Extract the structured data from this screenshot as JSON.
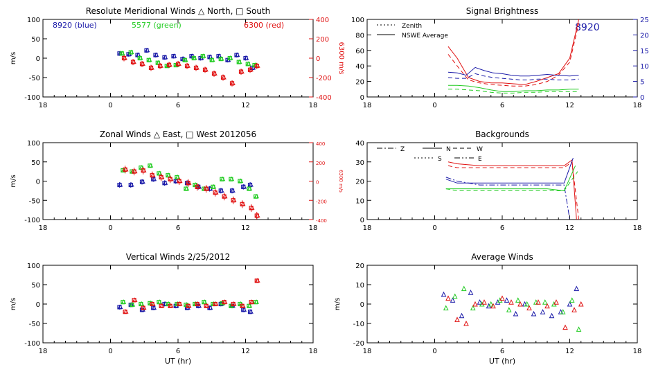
{
  "colors": {
    "blue": "#1a1aa8",
    "green": "#22cc22",
    "red": "#e01010",
    "axis": "#000000",
    "brightness_blue": "#1a1aa8"
  },
  "chart_data": [
    {
      "id": "meridional",
      "type": "scatter",
      "title": "Resolute Meridional Winds △ North, □ South",
      "xlabel": "",
      "ylabel": "m/s",
      "y2label": "6300 m/s",
      "xlim": [
        18,
        42
      ],
      "x_tick_values": [
        18,
        24,
        30,
        36,
        42
      ],
      "x_tick_labels": [
        "18",
        "0",
        "6",
        "12",
        "18"
      ],
      "ylim": [
        -100,
        100
      ],
      "y_ticks": [
        100,
        50,
        0,
        -50,
        -100
      ],
      "y2lim": [
        -400,
        400
      ],
      "y2_ticks": [
        400,
        200,
        0,
        -200,
        -400
      ],
      "legend": [
        {
          "label": "8920 (blue)",
          "color": "blue"
        },
        {
          "label": "5577 (green)",
          "color": "green"
        },
        {
          "label": "6300 (red)",
          "color": "red"
        }
      ],
      "series": [
        {
          "name": "8920 (blue)",
          "color": "blue",
          "axis": "left",
          "err": 6,
          "x": [
            24.8,
            25.6,
            26.4,
            27.2,
            28.0,
            28.8,
            29.6,
            30.4,
            31.2,
            32.0,
            32.8,
            33.6,
            34.4,
            35.2,
            36.0,
            36.6
          ],
          "y": [
            12,
            10,
            8,
            20,
            8,
            2,
            5,
            -2,
            5,
            0,
            3,
            5,
            -5,
            8,
            0,
            -25
          ]
        },
        {
          "name": "5577 (green)",
          "color": "green",
          "axis": "left",
          "err": 5,
          "x": [
            25.0,
            25.8,
            26.6,
            27.4,
            28.2,
            29.0,
            29.8,
            30.6,
            31.4,
            32.2,
            33.0,
            33.8,
            34.6,
            35.4,
            36.2,
            36.8
          ],
          "y": [
            12,
            15,
            0,
            -5,
            -12,
            -20,
            -18,
            -5,
            0,
            5,
            -5,
            -2,
            0,
            -10,
            -15,
            -18
          ]
        },
        {
          "name": "6300 (red)",
          "color": "red",
          "axis": "right",
          "err": 8,
          "x": [
            25.2,
            26.0,
            26.8,
            27.6,
            28.4,
            29.2,
            30.0,
            30.8,
            31.6,
            32.4,
            33.2,
            34.0,
            34.8,
            35.6,
            36.4,
            37.0
          ],
          "y": [
            0,
            -40,
            -60,
            -100,
            -80,
            -70,
            -60,
            -80,
            -100,
            -120,
            -160,
            -200,
            -260,
            -140,
            -120,
            -80
          ]
        }
      ]
    },
    {
      "id": "brightness",
      "type": "line",
      "title": "Signal Brightness",
      "xlabel": "",
      "ylabel": "",
      "xlim": [
        18,
        42
      ],
      "x_tick_values": [
        18,
        24,
        30,
        36,
        42
      ],
      "x_tick_labels": [
        "18",
        "0",
        "6",
        "12",
        "18"
      ],
      "ylim": [
        0,
        100
      ],
      "y_ticks": [
        100,
        80,
        60,
        40,
        20,
        0
      ],
      "y2lim": [
        0,
        25
      ],
      "y2_ticks": [
        25,
        20,
        15,
        10,
        5,
        0
      ],
      "annotation": "8920",
      "legend": [
        {
          "label": "Zenith",
          "dash": "2,3"
        },
        {
          "label": "NSWE Average",
          "dash": ""
        }
      ],
      "series": [
        {
          "name": "",
          "color": "red",
          "dash": "",
          "axis": "left",
          "x": [
            25.2,
            26.0,
            27.0,
            28.0,
            29.0,
            30.0,
            31.0,
            32.0,
            33.0,
            34.0,
            35.0,
            36.0,
            36.8
          ],
          "y": [
            65,
            50,
            25,
            20,
            18,
            18,
            17,
            16,
            20,
            25,
            30,
            50,
            100
          ]
        },
        {
          "name": "",
          "color": "red",
          "dash": "6,4",
          "axis": "left",
          "x": [
            25.2,
            26.0,
            27.0,
            28.0,
            29.0,
            30.0,
            31.0,
            32.0,
            33.0,
            34.0,
            35.0,
            36.0,
            36.8
          ],
          "y": [
            55,
            40,
            22,
            18,
            16,
            15,
            14,
            14,
            16,
            20,
            28,
            45,
            95
          ]
        },
        {
          "name": "",
          "color": "blue",
          "dash": "",
          "axis": "left",
          "x": [
            25.2,
            26.0,
            26.8,
            27.6,
            28.4,
            29.2,
            30.0,
            30.8,
            31.6,
            32.4,
            33.2,
            34.0,
            34.8,
            36.0,
            36.8
          ],
          "y": [
            32,
            31,
            28,
            38,
            34,
            31,
            30,
            28,
            27,
            27,
            28,
            29,
            28,
            27,
            28
          ]
        },
        {
          "name": "",
          "color": "blue",
          "dash": "6,4",
          "axis": "left",
          "x": [
            25.2,
            26.0,
            26.8,
            27.6,
            28.4,
            29.2,
            30.0,
            30.8,
            31.6,
            32.4,
            33.2,
            34.0,
            34.8,
            36.0,
            36.8
          ],
          "y": [
            25,
            24,
            24,
            30,
            27,
            25,
            24,
            23,
            22,
            22,
            23,
            23,
            22,
            22,
            23
          ]
        },
        {
          "name": "",
          "color": "green",
          "dash": "",
          "axis": "left",
          "x": [
            25.2,
            26.0,
            27.0,
            28.0,
            29.0,
            30.0,
            31.0,
            32.0,
            33.0,
            34.0,
            35.0,
            36.0,
            36.8
          ],
          "y": [
            15,
            15,
            14,
            12,
            9,
            7,
            7,
            8,
            8,
            9,
            9,
            10,
            10
          ]
        },
        {
          "name": "",
          "color": "green",
          "dash": "6,4",
          "axis": "left",
          "x": [
            25.2,
            26.0,
            27.0,
            28.0,
            29.0,
            30.0,
            31.0,
            32.0,
            33.0,
            34.0,
            35.0,
            36.0,
            36.8
          ],
          "y": [
            10,
            10,
            9,
            8,
            6,
            5,
            5,
            6,
            6,
            7,
            7,
            7,
            7
          ]
        }
      ]
    },
    {
      "id": "zonal",
      "type": "scatter",
      "title": "Zonal Winds △ East, □ West 2012056",
      "xlabel": "",
      "ylabel": "m/s",
      "y2label": "6300 m/s",
      "xlim": [
        18,
        42
      ],
      "x_tick_values": [
        18,
        24,
        30,
        36,
        42
      ],
      "x_tick_labels": [
        "18",
        "0",
        "6",
        "12",
        "18"
      ],
      "ylim": [
        -100,
        100
      ],
      "y_ticks": [
        100,
        50,
        0,
        -50,
        -100
      ],
      "y2lim": [
        -400,
        400
      ],
      "y2_ticks": [
        400,
        200,
        0,
        -200,
        -400
      ],
      "series": [
        {
          "name": "8920 (blue)",
          "color": "blue",
          "axis": "left",
          "err": 7,
          "x": [
            24.8,
            25.8,
            26.8,
            27.8,
            28.8,
            29.8,
            30.8,
            31.8,
            32.8,
            33.8,
            34.8,
            35.8,
            36.4
          ],
          "y": [
            -10,
            -10,
            -2,
            5,
            -5,
            0,
            -5,
            -15,
            -20,
            -25,
            -25,
            -15,
            -10
          ]
        },
        {
          "name": "5577 (green)",
          "color": "green",
          "axis": "left",
          "err": 5,
          "x": [
            25.1,
            25.9,
            26.7,
            27.5,
            28.3,
            29.1,
            29.9,
            30.7,
            31.5,
            32.3,
            33.1,
            33.9,
            34.7,
            35.5,
            36.3,
            36.9
          ],
          "y": [
            28,
            25,
            35,
            40,
            20,
            15,
            10,
            -20,
            -10,
            -20,
            -15,
            5,
            5,
            0,
            -20,
            -40
          ]
        },
        {
          "name": "6300 (red)",
          "color": "red",
          "axis": "right",
          "err": 10,
          "x": [
            25.3,
            26.1,
            26.9,
            27.7,
            28.5,
            29.3,
            30.1,
            30.9,
            31.7,
            32.5,
            33.3,
            34.1,
            34.9,
            35.7,
            36.5,
            37.0
          ],
          "y": [
            120,
            100,
            110,
            60,
            40,
            20,
            0,
            -20,
            -60,
            -80,
            -120,
            -160,
            -200,
            -240,
            -280,
            -360
          ]
        }
      ]
    },
    {
      "id": "backgrounds",
      "type": "line",
      "title": "Backgrounds",
      "xlabel": "",
      "ylabel": "",
      "xlim": [
        18,
        42
      ],
      "x_tick_values": [
        18,
        24,
        30,
        36,
        42
      ],
      "x_tick_labels": [
        "18",
        "0",
        "6",
        "12",
        "18"
      ],
      "ylim": [
        0,
        40
      ],
      "y_ticks": [
        40,
        30,
        20,
        10,
        0
      ],
      "legend": [
        {
          "label": "Z",
          "dash": "8,3,2,3"
        },
        {
          "label": "N",
          "dash": ""
        },
        {
          "label": "W",
          "dash": "6,4"
        },
        {
          "label": "S",
          "dash": "2,3"
        },
        {
          "label": "E",
          "dash": "8,3,2,3,2,3"
        }
      ],
      "series": [
        {
          "name": "",
          "color": "red",
          "dash": "",
          "x": [
            25.2,
            26.0,
            28.0,
            30.0,
            32.0,
            34.0,
            35.5,
            36.2,
            36.6
          ],
          "y": [
            30,
            29,
            28,
            28,
            28,
            28,
            28,
            31,
            0
          ]
        },
        {
          "name": "",
          "color": "red",
          "dash": "6,4",
          "x": [
            25.2,
            26.0,
            28.0,
            30.0,
            32.0,
            34.0,
            35.5,
            36.2,
            36.8
          ],
          "y": [
            28,
            27,
            27,
            27,
            27,
            27,
            27,
            30,
            0
          ]
        },
        {
          "name": "",
          "color": "blue",
          "dash": "",
          "x": [
            25.0,
            26.0,
            28.0,
            30.0,
            32.0,
            34.0,
            35.5,
            36.3
          ],
          "y": [
            21,
            19,
            19,
            19,
            19,
            19,
            19,
            32
          ]
        },
        {
          "name": "",
          "color": "blue",
          "dash": "8,3,2,3",
          "x": [
            25.0,
            26.0,
            28.0,
            30.0,
            32.0,
            34.0,
            35.5,
            36.0
          ],
          "y": [
            22,
            20,
            18,
            18,
            18,
            18,
            18,
            0
          ]
        },
        {
          "name": "",
          "color": "green",
          "dash": "",
          "x": [
            25.0,
            26.0,
            28.0,
            30.0,
            32.0,
            34.0,
            35.5,
            36.5
          ],
          "y": [
            16,
            16,
            16,
            16,
            16,
            16,
            15,
            28
          ]
        },
        {
          "name": "",
          "color": "green",
          "dash": "6,4",
          "x": [
            25.0,
            26.0,
            28.0,
            30.0,
            32.0,
            34.0,
            35.5,
            36.7
          ],
          "y": [
            16,
            15,
            15,
            15,
            15,
            15,
            15,
            25
          ]
        }
      ]
    },
    {
      "id": "vertical",
      "type": "scatter",
      "title": "Vertical Winds 2/25/2012",
      "xlabel": "UT (hr)",
      "ylabel": "m/s",
      "xlim": [
        18,
        42
      ],
      "x_tick_values": [
        18,
        24,
        30,
        36,
        42
      ],
      "x_tick_labels": [
        "18",
        "0",
        "6",
        "12",
        "18"
      ],
      "ylim": [
        -100,
        100
      ],
      "y_ticks": [
        100,
        50,
        0,
        -50,
        -100
      ],
      "series": [
        {
          "name": "8920 (blue)",
          "color": "blue",
          "axis": "left",
          "err": 6,
          "x": [
            24.8,
            25.8,
            26.8,
            27.8,
            28.8,
            29.8,
            30.8,
            31.8,
            32.8,
            33.8,
            34.8,
            35.8,
            36.4
          ],
          "y": [
            -8,
            -2,
            -15,
            -10,
            0,
            -5,
            -10,
            -5,
            -10,
            0,
            -5,
            -15,
            -20
          ]
        },
        {
          "name": "5577 (green)",
          "color": "green",
          "axis": "left",
          "err": 4,
          "x": [
            25.1,
            25.9,
            26.7,
            27.5,
            28.3,
            29.1,
            29.9,
            30.7,
            31.5,
            32.3,
            33.1,
            33.9,
            34.7,
            35.5,
            36.3,
            36.9
          ],
          "y": [
            5,
            -2,
            0,
            2,
            5,
            0,
            0,
            -2,
            0,
            5,
            0,
            2,
            -5,
            0,
            -5,
            5
          ]
        },
        {
          "name": "6300 (red)",
          "color": "red",
          "axis": "left",
          "err": 4,
          "x": [
            25.3,
            26.1,
            26.9,
            27.7,
            28.5,
            29.3,
            30.1,
            30.9,
            31.7,
            32.5,
            33.3,
            34.1,
            34.9,
            35.7,
            36.5,
            37.0
          ],
          "y": [
            -20,
            10,
            -10,
            0,
            -5,
            -5,
            0,
            -5,
            0,
            -5,
            0,
            5,
            0,
            -5,
            5,
            60
          ]
        }
      ]
    },
    {
      "id": "average",
      "type": "scatter",
      "title": "Average Winds",
      "xlabel": "UT (hr)",
      "ylabel": "m/s",
      "xlim": [
        18,
        42
      ],
      "x_tick_values": [
        18,
        24,
        30,
        36,
        42
      ],
      "x_tick_labels": [
        "18",
        "0",
        "6",
        "12",
        "18"
      ],
      "ylim": [
        -20,
        20
      ],
      "y_ticks": [
        20,
        10,
        0,
        -10,
        -20
      ],
      "series": [
        {
          "name": "",
          "color": "blue",
          "marker": "triangle",
          "x": [
            24.8,
            25.6,
            26.4,
            27.2,
            28.0,
            28.8,
            29.6,
            30.4,
            31.2,
            32.0,
            32.8,
            33.6,
            34.4,
            35.2,
            36.0,
            36.6
          ],
          "y": [
            5,
            2,
            -6,
            6,
            1,
            -1,
            1,
            2,
            -5,
            0,
            -5,
            -4,
            -6,
            -4,
            0,
            8
          ]
        },
        {
          "name": "",
          "color": "green",
          "marker": "triangle",
          "x": [
            25.0,
            25.8,
            26.6,
            27.4,
            28.2,
            29.0,
            29.8,
            30.6,
            31.4,
            32.2,
            33.0,
            33.8,
            34.6,
            35.4,
            36.2,
            36.8
          ],
          "y": [
            -2,
            4,
            8,
            -2,
            0,
            0,
            2,
            -3,
            2,
            0,
            1,
            1,
            0,
            -4,
            2,
            -13
          ]
        },
        {
          "name": "",
          "color": "red",
          "marker": "triangle",
          "x": [
            25.2,
            26.0,
            26.8,
            27.6,
            28.4,
            29.2,
            30.0,
            30.8,
            31.6,
            32.4,
            33.2,
            34.0,
            34.8,
            35.6,
            36.4,
            37.0
          ],
          "y": [
            3,
            -8,
            -10,
            0,
            1,
            -1,
            3,
            1,
            0,
            -2,
            1,
            -1,
            1,
            -12,
            -3,
            0
          ]
        }
      ]
    }
  ]
}
